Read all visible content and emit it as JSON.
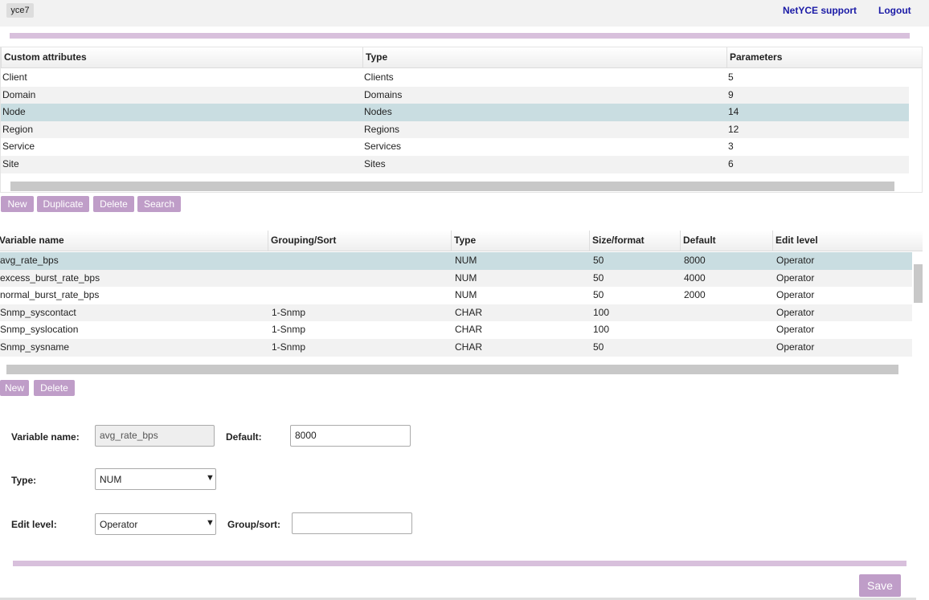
{
  "header": {
    "badge": "yce7",
    "links": [
      "NetYCE support",
      "Logout"
    ]
  },
  "attributes_table": {
    "columns": [
      "Custom attributes",
      "Type",
      "Parameters"
    ],
    "rows": [
      [
        "Client",
        "Clients",
        "5"
      ],
      [
        "Domain",
        "Domains",
        "9"
      ],
      [
        "Node",
        "Nodes",
        "14"
      ],
      [
        "Region",
        "Regions",
        "12"
      ],
      [
        "Service",
        "Services",
        "3"
      ],
      [
        "Site",
        "Sites",
        "6"
      ]
    ],
    "selected_row": 2,
    "buttons": [
      "New",
      "Duplicate",
      "Delete",
      "Search"
    ]
  },
  "variables_table": {
    "columns": [
      "Variable name",
      "Grouping/Sort",
      "Type",
      "Size/format",
      "Default",
      "Edit level"
    ],
    "rows": [
      [
        "avg_rate_bps",
        "",
        "NUM",
        "50",
        "8000",
        "Operator"
      ],
      [
        "excess_burst_rate_bps",
        "",
        "NUM",
        "50",
        "4000",
        "Operator"
      ],
      [
        "normal_burst_rate_bps",
        "",
        "NUM",
        "50",
        "2000",
        "Operator"
      ],
      [
        "Snmp_syscontact",
        "1-Snmp",
        "CHAR",
        "100",
        "",
        "Operator"
      ],
      [
        "Snmp_syslocation",
        "1-Snmp",
        "CHAR",
        "100",
        "",
        "Operator"
      ],
      [
        "Snmp_sysname",
        "1-Snmp",
        "CHAR",
        "50",
        "",
        "Operator"
      ]
    ],
    "selected_row": 0,
    "buttons": [
      "New",
      "Delete"
    ]
  },
  "form": {
    "variable_name": {
      "label": "Variable name:",
      "value": "avg_rate_bps"
    },
    "default": {
      "label": "Default:",
      "value": "8000"
    },
    "type": {
      "label": "Type:",
      "value": "NUM"
    },
    "edit_level": {
      "label": "Edit level:",
      "value": "Operator"
    },
    "group_sort": {
      "label": "Group/sort:",
      "value": ""
    }
  },
  "save": "Save"
}
